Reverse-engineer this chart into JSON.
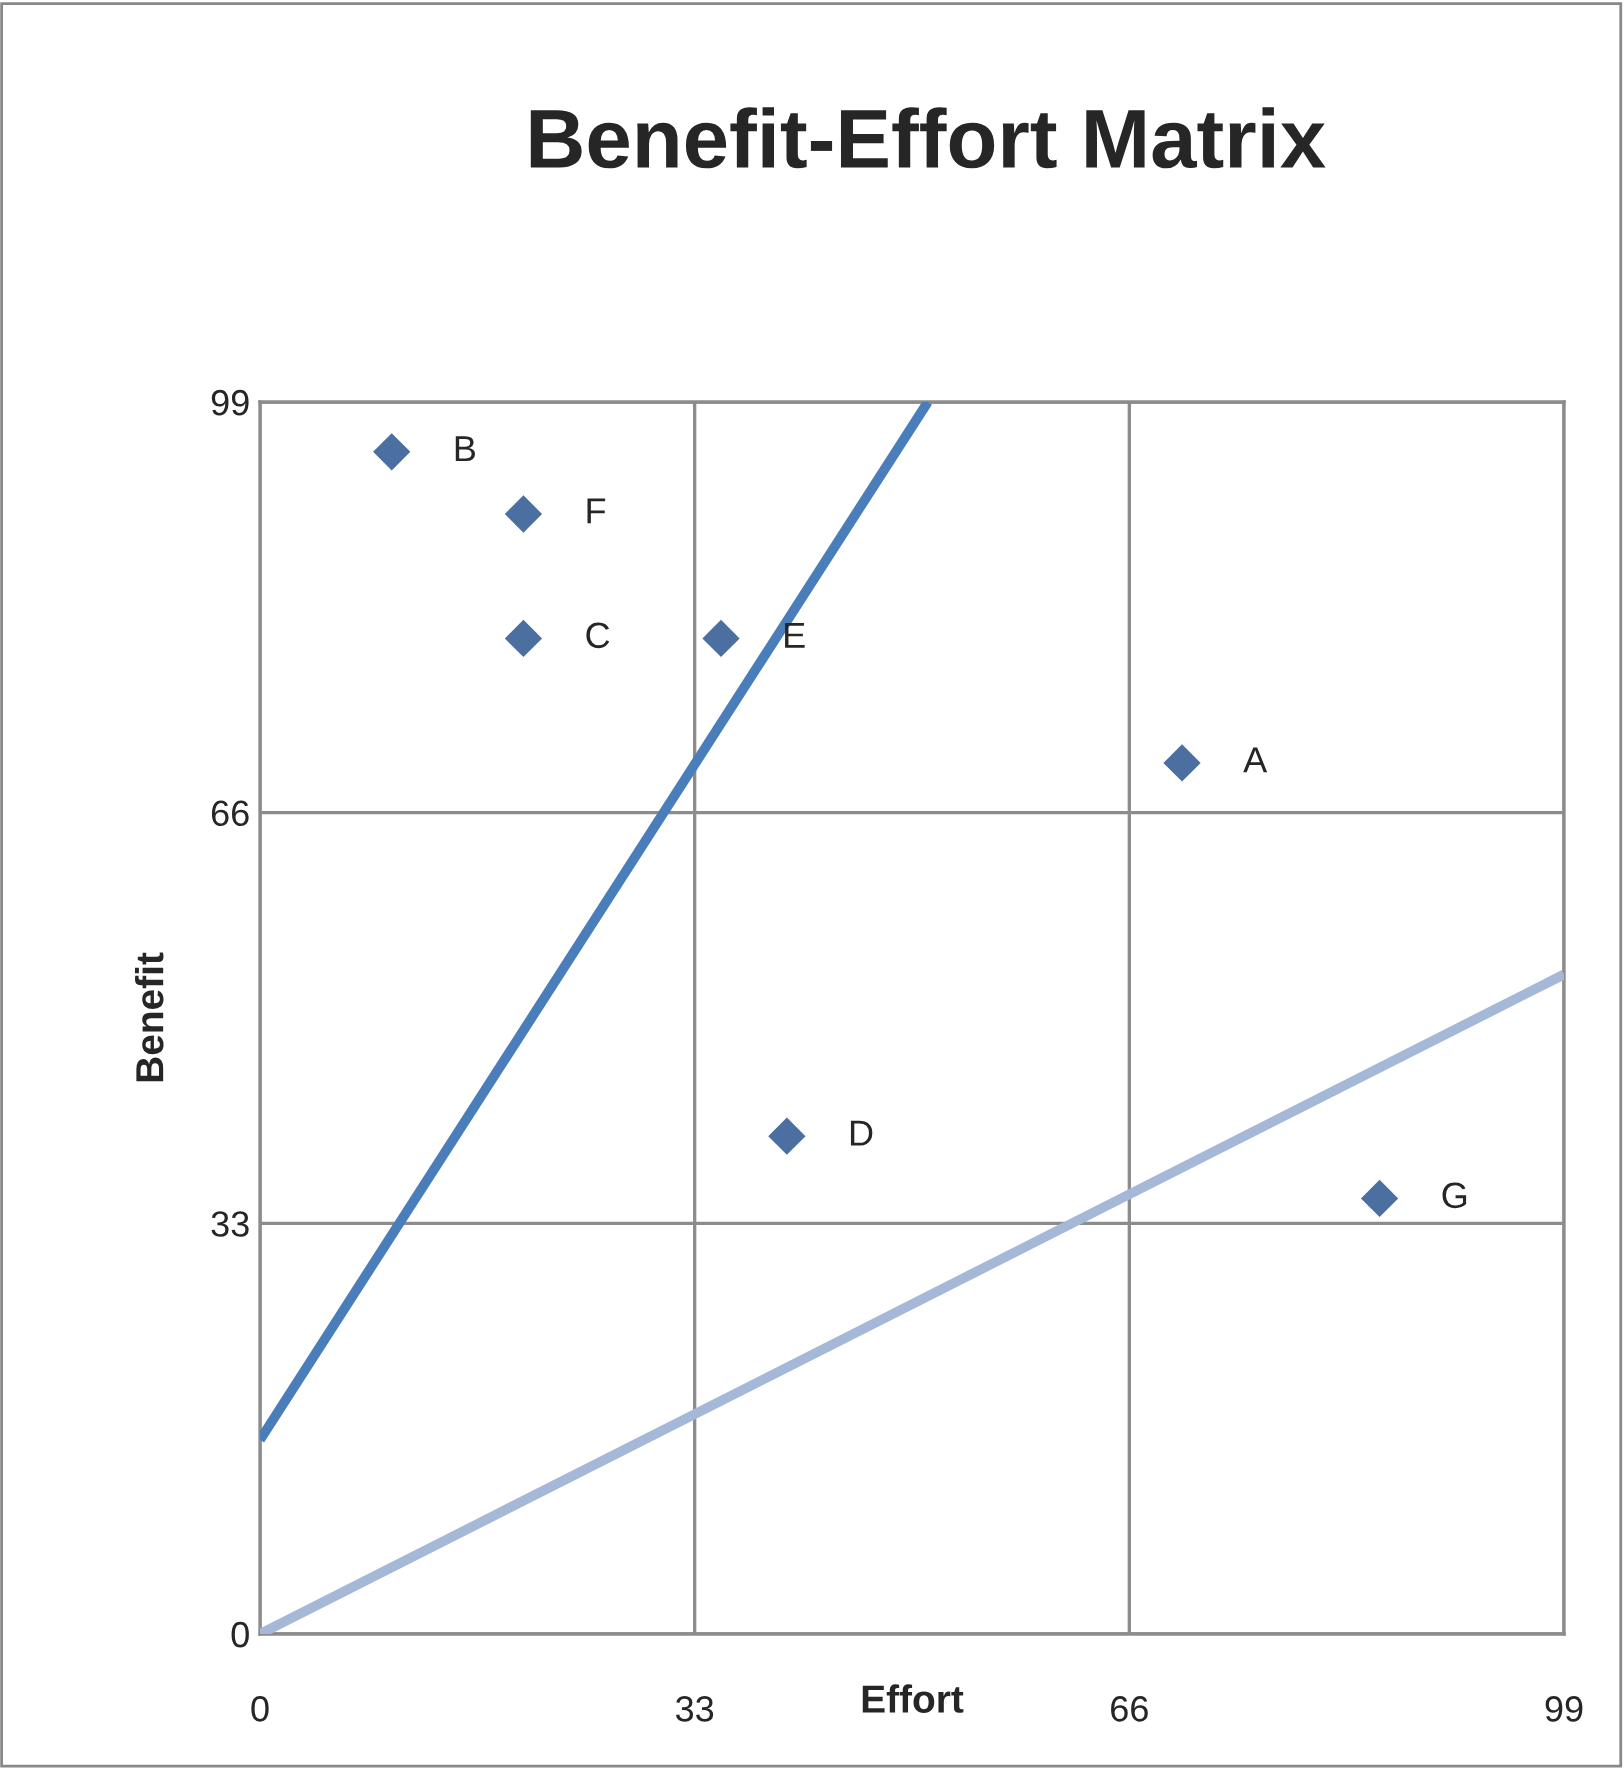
{
  "chart_data": {
    "type": "scatter",
    "title": "Benefit-Effort Matrix",
    "xlabel": "Effort",
    "ylabel": "Benefit",
    "series": [
      {
        "color": "#4a6fa0",
        "x": [
          70,
          10,
          20,
          40,
          35,
          20,
          85
        ],
        "values": [
          70,
          95,
          80,
          40,
          80,
          90,
          35
        ],
        "marker": "diamond"
      },
      {
        "type": "line",
        "color": "#4a7ebb",
        "x": [
          0,
          50.7
        ],
        "values": [
          15.6,
          99
        ]
      },
      {
        "type": "line",
        "color": "#a5b8d8",
        "x": [
          0,
          99
        ],
        "values": [
          0,
          53
        ]
      }
    ],
    "annotations": [
      {
        "text": "A",
        "x": 70,
        "y": 70
      },
      {
        "text": "B",
        "x": 10,
        "y": 95
      },
      {
        "text": "C",
        "x": 20,
        "y": 80
      },
      {
        "text": "D",
        "x": 40,
        "y": 40
      },
      {
        "text": "E",
        "x": 35,
        "y": 80
      },
      {
        "text": "F",
        "x": 20,
        "y": 90
      },
      {
        "text": "G",
        "x": 85,
        "y": 35
      }
    ],
    "xlim": [
      0,
      99
    ],
    "ylim": [
      0,
      99
    ],
    "xticks": [
      0,
      33,
      66,
      99
    ],
    "yticks": [
      0,
      33,
      66,
      99
    ],
    "grid": true,
    "legend": false
  }
}
